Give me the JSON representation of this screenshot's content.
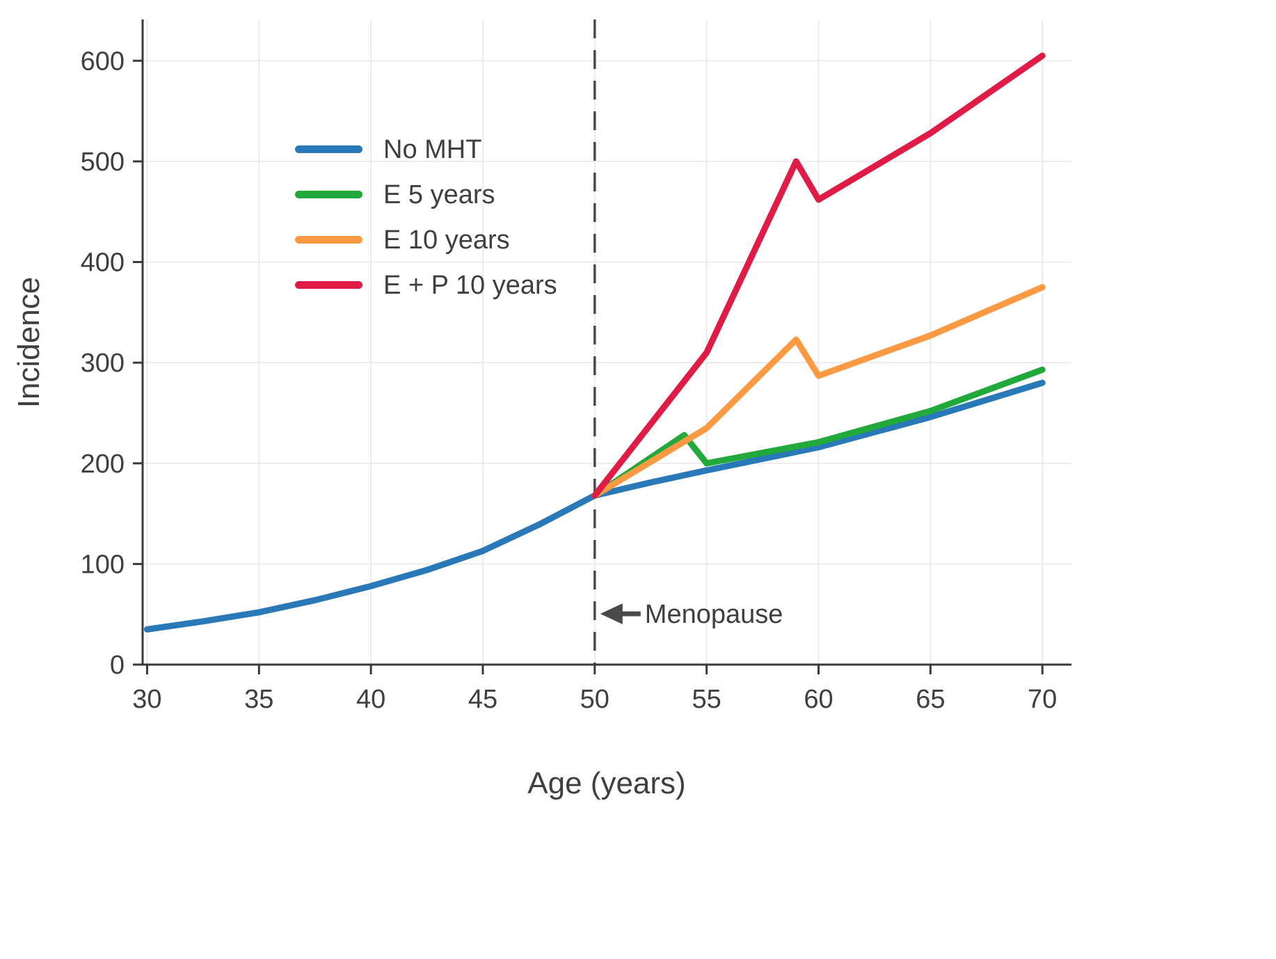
{
  "chart_data": {
    "type": "line",
    "title": "",
    "xlabel": "Age (years)",
    "ylabel": "Incidence",
    "xlim": [
      29.8,
      71.3
    ],
    "ylim": [
      0,
      641
    ],
    "xticks": [
      30,
      35,
      40,
      45,
      50,
      55,
      60,
      65,
      70
    ],
    "yticks": [
      0,
      100,
      200,
      300,
      400,
      500,
      600
    ],
    "grid": true,
    "legend_position": "upper-left-inside",
    "colors": {
      "grid": "#ececec",
      "axis": "#3a3a3a",
      "text": "#3f3f3f",
      "dashed_line": "#4a4a4a"
    },
    "menopause": {
      "x": 50,
      "label": "Menopause",
      "arrow_y": 50.5
    },
    "series": [
      {
        "name": "No MHT",
        "color": "#2979b9",
        "x": [
          30,
          32.5,
          35,
          37.5,
          40,
          42.5,
          45,
          47.5,
          50,
          52.5,
          55,
          60,
          65,
          70
        ],
        "y": [
          35,
          43,
          52,
          64,
          78,
          94,
          113,
          139,
          168,
          181,
          193,
          216,
          246,
          280
        ]
      },
      {
        "name": "E 5 years",
        "color": "#21a93c",
        "x": [
          50,
          54,
          55,
          60,
          65,
          70
        ],
        "y": [
          168,
          228,
          200,
          221,
          252,
          293
        ]
      },
      {
        "name": "E 10 years",
        "color": "#fb9a42",
        "x": [
          50,
          55,
          59,
          60,
          65,
          70
        ],
        "y": [
          168,
          235,
          323,
          287,
          327,
          375
        ]
      },
      {
        "name": "E + P 10 years",
        "color": "#df1b46",
        "x": [
          50,
          55,
          59,
          60,
          65,
          70
        ],
        "y": [
          168,
          310,
          500,
          462,
          528,
          605
        ]
      }
    ]
  }
}
